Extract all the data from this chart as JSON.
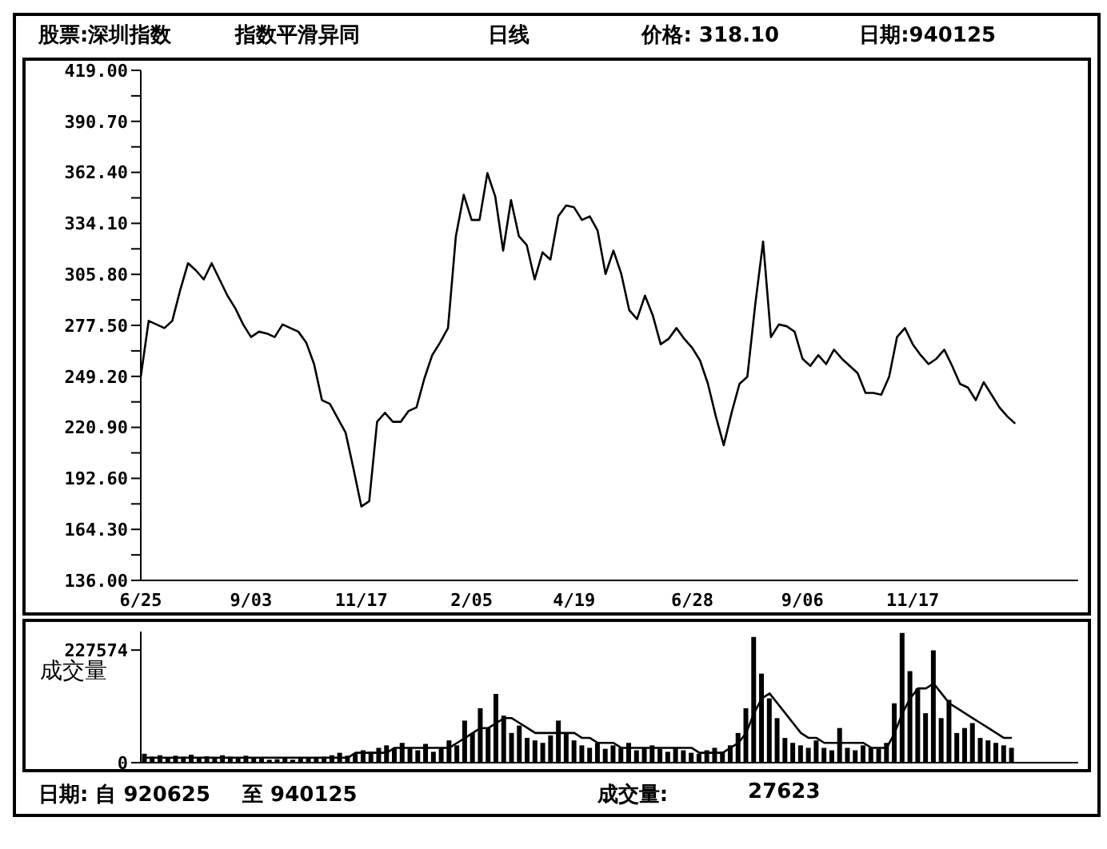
{
  "chart_data": [
    {
      "type": "line",
      "annotations": [
        "股票:深圳指数",
        "指数平滑异同",
        "日线",
        "价格: 318.10",
        "日期:940125"
      ],
      "categories": [
        "6/25",
        null,
        null,
        null,
        null,
        null,
        null,
        null,
        null,
        null,
        null,
        null,
        null,
        null,
        "9/03",
        null,
        null,
        null,
        null,
        null,
        null,
        null,
        null,
        null,
        null,
        null,
        null,
        null,
        "11/17",
        null,
        null,
        null,
        null,
        null,
        null,
        null,
        null,
        null,
        null,
        null,
        null,
        null,
        "2/05",
        null,
        null,
        null,
        null,
        null,
        null,
        null,
        null,
        null,
        null,
        null,
        null,
        "4/19",
        null,
        null,
        null,
        null,
        null,
        null,
        null,
        null,
        null,
        null,
        null,
        null,
        null,
        null,
        "6/28",
        null,
        null,
        null,
        null,
        null,
        null,
        null,
        null,
        null,
        null,
        null,
        null,
        null,
        "9/06",
        null,
        null,
        null,
        null,
        null,
        null,
        null,
        null,
        null,
        null,
        null,
        null,
        null,
        "11/17",
        null,
        null,
        null,
        null,
        null,
        null,
        null,
        null,
        null,
        null,
        null,
        null,
        null,
        null,
        null,
        null,
        null,
        null,
        null,
        null,
        null
      ],
      "ylim": [
        136,
        419
      ],
      "yticks": [
        {
          "value": 136,
          "label": "136.00"
        },
        {
          "value": 150.15,
          "label": null
        },
        {
          "value": 164.3,
          "label": "164.30"
        },
        {
          "value": 178.45,
          "label": null
        },
        {
          "value": 192.6,
          "label": "192.60"
        },
        {
          "value": 206.75,
          "label": null
        },
        {
          "value": 220.9,
          "label": "220.90"
        },
        {
          "value": 235.05,
          "label": null
        },
        {
          "value": 249.2,
          "label": "249.20"
        },
        {
          "value": 263.35,
          "label": null
        },
        {
          "value": 277.5,
          "label": "277.50"
        },
        {
          "value": 291.65,
          "label": null
        },
        {
          "value": 305.8,
          "label": "305.80"
        },
        {
          "value": 319.95,
          "label": null
        },
        {
          "value": 334.1,
          "label": "334.10"
        },
        {
          "value": 348.25,
          "label": null
        },
        {
          "value": 362.4,
          "label": "362.40"
        },
        {
          "value": 376.55,
          "label": null
        },
        {
          "value": 390.7,
          "label": "390.70"
        },
        {
          "value": 404.85,
          "label": null
        },
        {
          "value": 419,
          "label": "419.00"
        }
      ],
      "series": [
        {
          "color": "#000000",
          "values": [
            249,
            280,
            278,
            276,
            280,
            297,
            312,
            308,
            303,
            312,
            303,
            294,
            287,
            278,
            271,
            274,
            273,
            271,
            278,
            276,
            274,
            268,
            256,
            236,
            234,
            226,
            218,
            198,
            177,
            180,
            224,
            229,
            224,
            224,
            230,
            232,
            248,
            261,
            268,
            276,
            327,
            350,
            336,
            336,
            362,
            349,
            319,
            347,
            327,
            322,
            303,
            318,
            314,
            338,
            344,
            343,
            336,
            338,
            330,
            306,
            319,
            306,
            286,
            281,
            294,
            283,
            267,
            270,
            276,
            270,
            265,
            258,
            245,
            227,
            211,
            229,
            245,
            249,
            289,
            324,
            271,
            278,
            277,
            274,
            259,
            255,
            261,
            256,
            264,
            259,
            255,
            251,
            240,
            240,
            239,
            249,
            271,
            276,
            267,
            261,
            256,
            259,
            264,
            255,
            245,
            243,
            236,
            246,
            239,
            232,
            227,
            223,
            null,
            null,
            null,
            null,
            null,
            null,
            null,
            null
          ]
        }
      ]
    },
    {
      "type": "bar",
      "ylabel": "成交量",
      "annotations": [
        "日期: 自 920625",
        "至 940125",
        "成交量:",
        "27623"
      ],
      "tick_labels": "y",
      "categories": [
        null,
        null,
        null,
        null,
        null,
        null,
        null,
        null,
        null,
        null,
        null,
        null,
        null,
        null,
        null,
        null,
        null,
        null,
        null,
        null,
        null,
        null,
        null,
        null,
        null,
        null,
        null,
        null,
        null,
        null,
        null,
        null,
        null,
        null,
        null,
        null,
        null,
        null,
        null,
        null,
        null,
        null,
        null,
        null,
        null,
        null,
        null,
        null,
        null,
        null,
        null,
        null,
        null,
        null,
        null,
        null,
        null,
        null,
        null,
        null,
        null,
        null,
        null,
        null,
        null,
        null,
        null,
        null,
        null,
        null,
        null,
        null,
        null,
        null,
        null,
        null,
        null,
        null,
        null,
        null,
        null,
        null,
        null,
        null,
        null,
        null,
        null,
        null,
        null,
        null,
        null,
        null,
        null,
        null,
        null,
        null,
        null,
        null,
        null,
        null,
        null,
        null,
        null,
        null,
        null,
        null,
        null,
        null,
        null,
        null,
        null,
        null,
        null,
        null,
        null,
        null,
        null,
        null,
        null,
        null
      ],
      "ylim": [
        0,
        265000
      ],
      "yticks": [
        0,
        227574
      ],
      "series": [
        {
          "color": "#000000",
          "values": [
            18000,
            12000,
            15000,
            10000,
            14000,
            12000,
            16000,
            11000,
            13000,
            10000,
            15000,
            12000,
            9000,
            14000,
            11000,
            8000,
            6000,
            7000,
            9000,
            6000,
            8000,
            10000,
            9000,
            12000,
            15000,
            20000,
            14000,
            18000,
            25000,
            22000,
            30000,
            35000,
            28000,
            40000,
            30000,
            25000,
            38000,
            22000,
            30000,
            45000,
            35000,
            85000,
            60000,
            110000,
            70000,
            139000,
            95000,
            60000,
            75000,
            50000,
            45000,
            40000,
            55000,
            85000,
            60000,
            45000,
            35000,
            30000,
            40000,
            28000,
            35000,
            30000,
            40000,
            25000,
            30000,
            35000,
            28000,
            22000,
            30000,
            25000,
            20000,
            18000,
            25000,
            30000,
            22000,
            35000,
            60000,
            110000,
            254000,
            180000,
            130000,
            90000,
            50000,
            40000,
            35000,
            30000,
            45000,
            30000,
            25000,
            70000,
            30000,
            25000,
            35000,
            30000,
            28000,
            40000,
            120000,
            262000,
            185000,
            150000,
            100000,
            227000,
            90000,
            127000,
            60000,
            70000,
            80000,
            50000,
            45000,
            40000,
            35000,
            30000,
            null,
            null,
            null,
            null,
            null,
            null,
            null,
            null
          ]
        },
        {
          "type": "line",
          "color": "#000000",
          "values": [
            10000,
            10000,
            10000,
            10000,
            10000,
            10000,
            10000,
            10000,
            10000,
            10000,
            10000,
            10000,
            10000,
            10000,
            10000,
            10000,
            10000,
            10000,
            10000,
            10000,
            10000,
            10000,
            10000,
            10000,
            10000,
            10000,
            10000,
            20000,
            20000,
            20000,
            20000,
            20000,
            30000,
            30000,
            30000,
            30000,
            30000,
            30000,
            30000,
            30000,
            40000,
            50000,
            60000,
            70000,
            70000,
            80000,
            90000,
            90000,
            80000,
            70000,
            60000,
            60000,
            60000,
            60000,
            60000,
            60000,
            50000,
            50000,
            40000,
            40000,
            40000,
            30000,
            30000,
            30000,
            30000,
            30000,
            30000,
            30000,
            30000,
            30000,
            30000,
            20000,
            20000,
            20000,
            20000,
            30000,
            40000,
            60000,
            100000,
            130000,
            140000,
            120000,
            100000,
            80000,
            60000,
            50000,
            50000,
            40000,
            40000,
            40000,
            40000,
            40000,
            40000,
            30000,
            30000,
            30000,
            60000,
            100000,
            130000,
            150000,
            150000,
            160000,
            140000,
            120000,
            110000,
            100000,
            90000,
            80000,
            70000,
            60000,
            50000,
            50000,
            null,
            null,
            null,
            null,
            null,
            null,
            null,
            null
          ]
        }
      ]
    }
  ]
}
